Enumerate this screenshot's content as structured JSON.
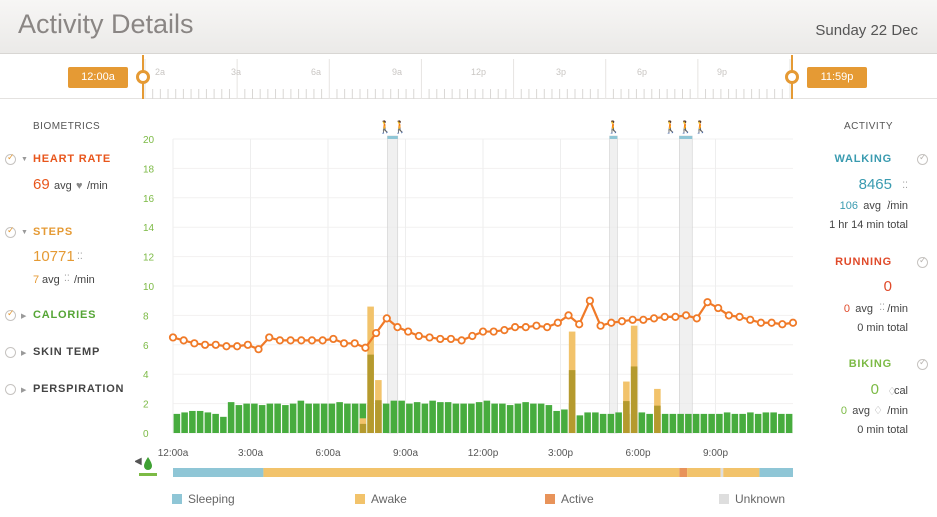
{
  "header": {
    "title": "Activity Details",
    "date": "Sunday 22 Dec"
  },
  "timeline": {
    "start_label": "12:00a",
    "end_label": "11:59p",
    "hour_labels": [
      "2a",
      "3a",
      "6a",
      "9a",
      "12p",
      "3p",
      "6p",
      "9p"
    ]
  },
  "biometrics": {
    "heading": "BIOMETRICS",
    "heart_rate": {
      "label": "HEART RATE",
      "value": "69",
      "unit": "avg",
      "per": "/min",
      "color": "#e8561c"
    },
    "steps": {
      "label": "STEPS",
      "value": "10771",
      "avg": "7",
      "avg_unit": "avg",
      "per": "/min",
      "color": "#e59a34"
    },
    "calories": {
      "label": "CALORIES",
      "color": "#55a535"
    },
    "skin_temp": {
      "label": "SKIN TEMP"
    },
    "perspiration": {
      "label": "PERSPIRATION"
    }
  },
  "activity": {
    "heading": "ACTIVITY",
    "walking": {
      "label": "WALKING",
      "value": "8465",
      "avg": "106",
      "avg_unit": "avg",
      "per": "/min",
      "total": "1 hr 14 min total",
      "color": "#3a9bb0"
    },
    "running": {
      "label": "RUNNING",
      "value": "0",
      "avg": "0",
      "avg_unit": "avg",
      "per": "/min",
      "total": "0 min total",
      "color": "#e04a2a"
    },
    "biking": {
      "label": "BIKING",
      "value": "0",
      "value_unit": "cal",
      "avg": "0",
      "avg_unit": "avg",
      "per": "/min",
      "total": "0 min total",
      "color": "#7cba45"
    }
  },
  "legend": [
    {
      "label": "Sleeping",
      "color": "#8fc6d6"
    },
    {
      "label": "Awake",
      "color": "#f2c36b"
    },
    {
      "label": "Active",
      "color": "#e8935a"
    },
    {
      "label": "Unknown",
      "color": "#dedede"
    }
  ],
  "chart_data": {
    "type": "bar",
    "y_ticks": [
      0,
      2,
      4,
      6,
      8,
      10,
      12,
      14,
      16,
      18,
      20
    ],
    "ylim": [
      0,
      20
    ],
    "x_labels": [
      "12:00a",
      "3:00a",
      "6:00a",
      "9:00a",
      "12:00p",
      "3:00p",
      "6:00p",
      "9:00p"
    ],
    "xlim_hours": [
      0,
      24
    ],
    "colors": {
      "calories": "#47ac3e",
      "steps": "#f2c36b",
      "steps_dark": "#b59a2e",
      "heart": "#f07a28"
    },
    "series": [
      {
        "name": "CALORIES",
        "values": [
          1.3,
          1.4,
          1.5,
          1.5,
          1.4,
          1.3,
          1.1,
          2.1,
          1.9,
          2.0,
          2.0,
          1.9,
          2.0,
          2.0,
          1.9,
          2.0,
          2.2,
          2.0,
          2.0,
          2.0,
          2.0,
          2.1,
          2.0,
          2.0,
          2.0,
          1.9,
          1.9,
          2.0,
          2.2,
          2.2,
          2.0,
          2.1,
          2.0,
          2.2,
          2.1,
          2.1,
          2.0,
          2.0,
          2.0,
          2.1,
          2.2,
          2.0,
          2.0,
          1.9,
          2.0,
          2.1,
          2.0,
          2.0,
          1.9,
          1.5,
          1.6,
          2.0,
          1.2,
          1.4,
          1.4,
          1.3,
          1.3,
          1.4,
          1.3,
          1.3,
          1.4,
          1.3,
          1.3,
          1.3,
          1.3,
          1.3,
          1.3,
          1.3,
          1.3,
          1.3,
          1.3,
          1.4,
          1.3,
          1.3,
          1.4,
          1.3,
          1.4,
          1.4,
          1.3,
          1.3
        ]
      },
      {
        "name": "STEPS",
        "values": [
          0,
          0,
          0,
          0,
          0,
          0,
          0,
          0,
          0,
          0,
          0,
          0,
          0,
          0,
          0,
          0,
          0,
          0,
          0,
          0,
          0,
          0,
          0,
          0,
          0,
          0,
          0,
          0,
          0,
          0,
          0,
          0,
          0,
          0,
          0,
          0,
          0,
          0,
          0,
          0,
          0,
          0,
          0,
          0,
          0,
          0,
          0,
          0,
          0,
          0,
          0,
          0,
          0,
          0,
          0,
          0,
          0,
          0,
          0,
          0,
          0,
          0,
          0,
          0,
          0,
          0,
          0,
          0,
          0,
          0,
          0,
          0,
          0,
          0,
          0,
          0,
          0,
          0,
          0,
          0
        ]
      },
      {
        "name": "HEART RATE",
        "values": [
          6.5,
          6.3,
          6.1,
          6.0,
          6.0,
          5.9,
          5.9,
          6.0,
          5.7,
          6.5,
          6.3,
          6.3,
          6.3,
          6.3,
          6.3,
          6.4,
          6.1,
          6.1,
          5.8,
          6.8,
          7.8,
          7.2,
          6.9,
          6.6,
          6.5,
          6.4,
          6.4,
          6.3,
          6.6,
          6.9,
          6.9,
          7.0,
          7.2,
          7.2,
          7.3,
          7.2,
          7.5,
          8.0,
          7.4,
          9.0,
          7.3,
          7.5,
          7.6,
          7.7,
          7.7,
          7.8,
          7.9,
          7.9,
          8.0,
          7.8,
          8.9,
          8.5,
          8.0,
          7.9,
          7.7,
          7.5,
          7.5,
          7.4,
          7.5
        ]
      }
    ],
    "activity_markers": [
      {
        "icon": "walk-pair-icon",
        "start_hour": 8.3,
        "end_hour": 8.7
      },
      {
        "icon": "walk-icon",
        "start_hour": 16.9,
        "end_hour": 17.2
      },
      {
        "icon": "walk-group-icon",
        "start_hour": 19.6,
        "end_hour": 20.1
      }
    ],
    "state_bands": [
      {
        "state": "Sleeping",
        "start_hour": 0,
        "end_hour": 3.5
      },
      {
        "state": "Awake",
        "start_hour": 3.5,
        "end_hour": 19.6
      },
      {
        "state": "Active",
        "start_hour": 19.6,
        "end_hour": 19.9
      },
      {
        "state": "Awake",
        "start_hour": 19.9,
        "end_hour": 21.2
      },
      {
        "state": "Unknown",
        "start_hour": 21.2,
        "end_hour": 21.3
      },
      {
        "state": "Awake",
        "start_hour": 21.3,
        "end_hour": 22.7
      },
      {
        "state": "Sleeping",
        "start_hour": 22.7,
        "end_hour": 24
      }
    ]
  }
}
